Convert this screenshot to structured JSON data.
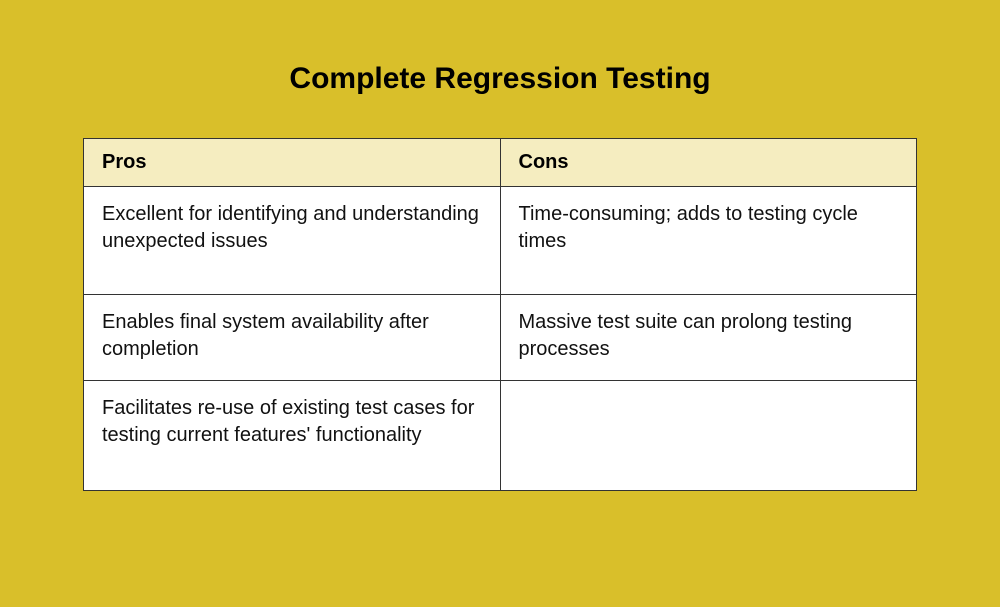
{
  "title": "Complete Regression Testing",
  "table": {
    "type": "table",
    "background_color": "#d9bf2a",
    "header_bg": "#f5edc0",
    "cell_bg": "#ffffff",
    "border_color": "#333333",
    "title_fontsize": 30,
    "header_fontsize": 20,
    "header_fontweight": 700,
    "cell_fontsize": 20,
    "cell_fontweight": 400,
    "columns": [
      "Pros",
      "Cons"
    ],
    "column_widths": [
      0.5,
      0.5
    ],
    "rows": [
      [
        "Excellent for identifying and understanding unexpected issues",
        "Time-consuming; adds to testing cycle times"
      ],
      [
        "Enables final system availability after completion",
        "Massive test suite can prolong testing processes"
      ],
      [
        "Facilitates re-use of existing test cases for testing current features' functionality",
        ""
      ]
    ]
  }
}
